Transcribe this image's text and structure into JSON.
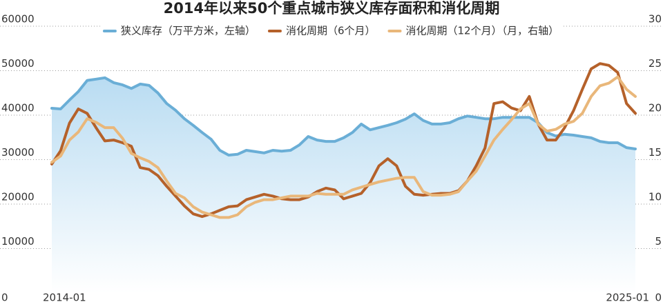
{
  "chart_data": {
    "type": "line",
    "title": "2014年以来50个重点城市狭义库存面积和消化周期",
    "categories": [
      "2014-01",
      null,
      null,
      null,
      null,
      null,
      null,
      null,
      null,
      null,
      null,
      null,
      null,
      null,
      null,
      null,
      null,
      null,
      null,
      null,
      null,
      null,
      null,
      null,
      null,
      null,
      null,
      null,
      null,
      null,
      null,
      null,
      null,
      null,
      null,
      null,
      null,
      null,
      null,
      null,
      null,
      null,
      null,
      null,
      null,
      null,
      null,
      null,
      null,
      null,
      null,
      null,
      null,
      null,
      null,
      null,
      null,
      null,
      null,
      null,
      null,
      null,
      null,
      null,
      null,
      null,
      "2025-01"
    ],
    "series": [
      {
        "name": "狭义库存（万平方米，左轴）",
        "color": "#6aaed6",
        "area": true,
        "values": [
          41550,
          41400,
          43400,
          45300,
          47800,
          48100,
          48400,
          47300,
          46800,
          46000,
          47000,
          46700,
          45000,
          42600,
          41100,
          39200,
          37700,
          36100,
          34600,
          32100,
          31000,
          31200,
          32100,
          31800,
          31500,
          32100,
          31900,
          32100,
          33300,
          35200,
          34400,
          34100,
          34100,
          34900,
          36100,
          38000,
          36700,
          37200,
          37700,
          38300,
          39100,
          40300,
          38800,
          38000,
          38000,
          38300,
          39200,
          39800,
          39500,
          39200,
          39200,
          39500,
          39500,
          39500,
          39500,
          38300,
          36100,
          35300,
          35700,
          35500,
          35200,
          34900,
          34100,
          33800,
          33800,
          32700,
          32400
        ]
      },
      {
        "name": "消化周期（6个月）",
        "color": "#b5612a",
        "axis": "y2",
        "values": [
          14.5,
          16.0,
          19.1,
          20.7,
          20.2,
          18.6,
          17.1,
          17.2,
          16.9,
          16.5,
          14.1,
          13.9,
          13.2,
          12.0,
          10.9,
          9.8,
          8.9,
          8.6,
          8.9,
          9.3,
          9.7,
          9.8,
          10.5,
          10.8,
          11.1,
          10.9,
          10.6,
          10.5,
          10.5,
          10.8,
          11.4,
          11.8,
          11.6,
          10.6,
          10.9,
          11.2,
          12.4,
          14.3,
          15.1,
          14.3,
          12.0,
          11.1,
          11.0,
          11.1,
          11.2,
          11.2,
          11.5,
          12.6,
          14.3,
          16.3,
          21.3,
          21.5,
          20.8,
          20.5,
          22.1,
          19.0,
          17.2,
          17.2,
          18.6,
          20.5,
          22.9,
          25.2,
          25.8,
          25.6,
          24.8,
          21.3,
          20.2
        ]
      },
      {
        "name": "消化周期（12个月）（月，右轴）",
        "color": "#e9b77a",
        "axis": "y2",
        "values": [
          14.7,
          15.4,
          17.2,
          18.1,
          19.6,
          19.2,
          18.6,
          18.6,
          17.4,
          15.7,
          15.2,
          14.8,
          14.1,
          12.6,
          11.2,
          10.7,
          9.7,
          9.1,
          8.8,
          8.5,
          8.5,
          8.8,
          9.7,
          10.2,
          10.5,
          10.5,
          10.7,
          10.9,
          10.9,
          10.9,
          11.2,
          11.1,
          11.1,
          11.1,
          11.6,
          11.9,
          12.2,
          12.5,
          12.7,
          12.9,
          13.0,
          13.0,
          11.4,
          11.0,
          11.0,
          11.1,
          11.4,
          12.6,
          13.7,
          15.4,
          17.2,
          18.4,
          19.5,
          20.7,
          21.3,
          19.0,
          18.2,
          18.4,
          19.0,
          19.3,
          20.2,
          22.1,
          23.3,
          23.6,
          24.3,
          22.9,
          22.1
        ]
      }
    ],
    "ylim": [
      0,
      60000
    ],
    "yticks": [
      0,
      10000,
      20000,
      30000,
      40000,
      50000,
      60000
    ],
    "y2lim": [
      0,
      30
    ],
    "y2ticks": [
      0,
      5,
      10,
      15,
      20,
      25,
      30
    ],
    "grid": true,
    "legend": "top"
  }
}
